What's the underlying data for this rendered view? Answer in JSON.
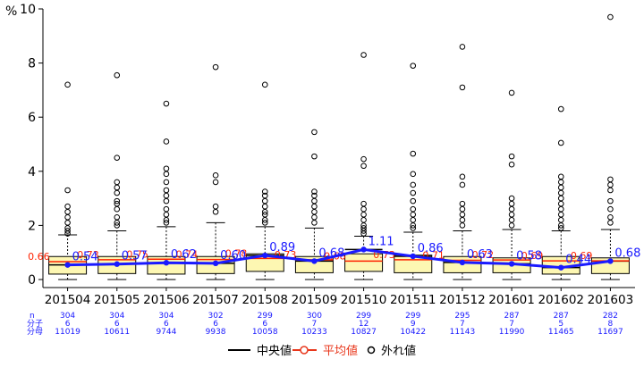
{
  "chart_data": {
    "type": "boxplot",
    "title": "",
    "ylabel": "%",
    "ylim": [
      0,
      10
    ],
    "yticks": [
      0,
      2,
      4,
      6,
      8,
      10
    ],
    "categories": [
      "201504",
      "201505",
      "201506",
      "201507",
      "201508",
      "201509",
      "201510",
      "201511",
      "201512",
      "201601",
      "201602",
      "201603"
    ],
    "boxes": [
      {
        "q1": 0.2,
        "q3": 0.85,
        "lo": 0.0,
        "hi": 1.65,
        "outliers": [
          7.2,
          3.3,
          2.7,
          2.5,
          2.3,
          2.1,
          1.9,
          1.8,
          1.7
        ]
      },
      {
        "q1": 0.22,
        "q3": 0.85,
        "lo": 0.0,
        "hi": 1.8,
        "outliers": [
          7.55,
          4.5,
          3.6,
          3.4,
          3.2,
          2.9,
          2.8,
          2.6,
          2.3,
          2.1,
          2.0
        ]
      },
      {
        "q1": 0.2,
        "q3": 0.85,
        "lo": 0.0,
        "hi": 1.95,
        "outliers": [
          6.5,
          5.1,
          4.1,
          3.9,
          3.6,
          3.3,
          3.1,
          2.9,
          2.6,
          2.4,
          2.2,
          2.1
        ]
      },
      {
        "q1": 0.22,
        "q3": 0.85,
        "lo": 0.0,
        "hi": 2.1,
        "outliers": [
          7.85,
          3.85,
          3.6,
          2.7,
          2.5
        ]
      },
      {
        "q1": 0.3,
        "q3": 0.95,
        "lo": 0.0,
        "hi": 1.95,
        "outliers": [
          7.2,
          3.25,
          3.1,
          2.9,
          2.7,
          2.5,
          2.4,
          2.2,
          2.1
        ]
      },
      {
        "q1": 0.25,
        "q3": 0.85,
        "lo": 0.0,
        "hi": 1.9,
        "outliers": [
          5.45,
          4.55,
          3.25,
          3.1,
          2.9,
          2.7,
          2.5,
          2.3,
          2.1
        ]
      },
      {
        "q1": 0.3,
        "q3": 0.95,
        "lo": 0.0,
        "hi": 1.6,
        "outliers": [
          8.3,
          4.45,
          4.2,
          2.8,
          2.6,
          2.4,
          2.2,
          2.0,
          1.9,
          1.8,
          1.7
        ]
      },
      {
        "q1": 0.25,
        "q3": 0.9,
        "lo": 0.0,
        "hi": 1.75,
        "outliers": [
          7.9,
          4.65,
          3.9,
          3.5,
          3.2,
          2.9,
          2.6,
          2.4,
          2.2,
          2.0,
          1.9
        ]
      },
      {
        "q1": 0.25,
        "q3": 0.85,
        "lo": 0.0,
        "hi": 1.8,
        "outliers": [
          8.6,
          7.1,
          3.8,
          3.5,
          2.8,
          2.6,
          2.4,
          2.2,
          2.0
        ]
      },
      {
        "q1": 0.25,
        "q3": 0.8,
        "lo": 0.0,
        "hi": 1.85,
        "outliers": [
          6.9,
          4.55,
          4.25,
          3.0,
          2.8,
          2.6,
          2.4,
          2.2,
          2.0
        ]
      },
      {
        "q1": 0.2,
        "q3": 0.85,
        "lo": 0.0,
        "hi": 1.8,
        "outliers": [
          6.3,
          5.05,
          3.8,
          3.6,
          3.4,
          3.2,
          3.0,
          2.8,
          2.6,
          2.4,
          2.2,
          2.0,
          1.9
        ]
      },
      {
        "q1": 0.22,
        "q3": 0.8,
        "lo": 0.0,
        "hi": 1.85,
        "outliers": [
          9.7,
          3.7,
          3.5,
          3.3,
          2.9,
          2.6,
          2.3,
          2.1
        ]
      }
    ],
    "median_series": {
      "name": "中央値",
      "values": [
        0.54,
        0.57,
        0.62,
        0.6,
        0.89,
        0.68,
        1.11,
        0.86,
        0.63,
        0.58,
        0.44,
        0.68
      ],
      "color": "#1a1aff"
    },
    "mean_series": {
      "name": "平均値",
      "values": [
        0.66,
        0.73,
        0.75,
        0.74,
        0.78,
        0.73,
        0.68,
        0.73,
        0.71,
        0.72,
        0.69,
        0.69
      ],
      "color": "#ff2200"
    },
    "median_labels": [
      "0.54",
      "0.57",
      "0.62",
      "0.60",
      "0.89",
      "0.68",
      "1.11",
      "0.86",
      "0.63",
      "0.58",
      "0.44",
      "0.68"
    ],
    "mean_labels": [
      "0.66",
      "0.73",
      "0.75",
      "0.74",
      "0.78",
      "0.73",
      "0.68",
      "0.73",
      "0.71",
      "0.72",
      "0.69",
      "0.69"
    ],
    "counts": {
      "row_labels": [
        "n",
        "分子",
        "分母"
      ],
      "n": [
        "304",
        "304",
        "304",
        "302",
        "299",
        "300",
        "299",
        "299",
        "295",
        "287",
        "287",
        "282"
      ],
      "numerator": [
        "6",
        "6",
        "6",
        "6",
        "6",
        "7",
        "12",
        "9",
        "7",
        "7",
        "5",
        "8"
      ],
      "denominator": [
        "11019",
        "10611",
        "9744",
        "9938",
        "10058",
        "10233",
        "10827",
        "10422",
        "11143",
        "11990",
        "11465",
        "11697"
      ]
    },
    "legend": [
      {
        "label": "中央値",
        "kind": "line",
        "color": "#000000"
      },
      {
        "label": "平均値",
        "kind": "line-dot",
        "color": "#e8371c"
      },
      {
        "label": "外れ値",
        "kind": "circle",
        "color": "#000000"
      }
    ],
    "box_fill": "#fdf7b2",
    "grid": false,
    "legend_position": "bottom"
  }
}
